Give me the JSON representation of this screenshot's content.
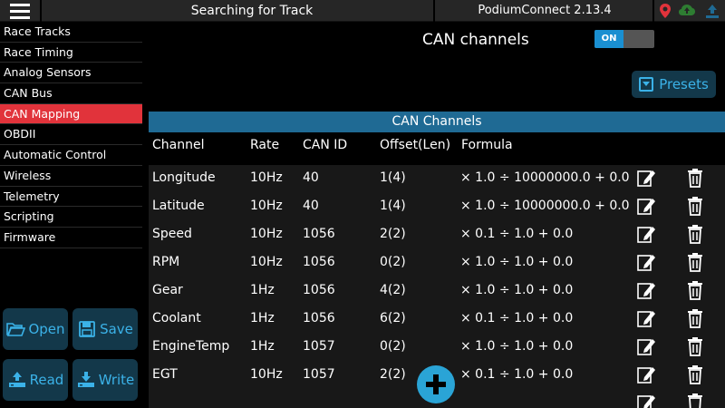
{
  "header": {
    "title": "Searching for Track",
    "app_version": "PodiumConnect 2.13.4",
    "icons": [
      "menu-icon",
      "location-pin-icon",
      "cloud-upload-icon",
      "upload-icon"
    ],
    "colors": {
      "pin": "#e1333b",
      "cloud": "#2e7d32",
      "upload": "#1f6a94"
    }
  },
  "sidebar": {
    "items": [
      {
        "label": "Race Tracks"
      },
      {
        "label": "Race Timing"
      },
      {
        "label": "Analog Sensors"
      },
      {
        "label": "CAN Bus"
      },
      {
        "label": "CAN Mapping",
        "active": true
      },
      {
        "label": "OBDII"
      },
      {
        "label": "Automatic Control"
      },
      {
        "label": "Wireless"
      },
      {
        "label": "Telemetry"
      },
      {
        "label": "Scripting"
      },
      {
        "label": "Firmware"
      }
    ],
    "buttons": {
      "open": "Open",
      "save": "Save",
      "read": "Read",
      "write": "Write"
    }
  },
  "main": {
    "can_title": "CAN channels",
    "toggle_label": "ON",
    "presets_label": "Presets",
    "table_title": "CAN Channels",
    "columns": {
      "channel": "Channel",
      "rate": "Rate",
      "can_id": "CAN ID",
      "offset": "Offset(Len)",
      "formula": "Formula"
    },
    "rows": [
      {
        "channel": "Longitude",
        "rate": "10Hz",
        "can_id": "40",
        "offset": "1(4)",
        "formula": "× 1.0 ÷ 10000000.0 + 0.0"
      },
      {
        "channel": "Latitude",
        "rate": "10Hz",
        "can_id": "40",
        "offset": "1(4)",
        "formula": "× 1.0 ÷ 10000000.0 + 0.0"
      },
      {
        "channel": "Speed",
        "rate": "10Hz",
        "can_id": "1056",
        "offset": "2(2)",
        "formula": "× 0.1 ÷ 1.0 + 0.0"
      },
      {
        "channel": "RPM",
        "rate": "10Hz",
        "can_id": "1056",
        "offset": "0(2)",
        "formula": "× 1.0 ÷ 1.0 + 0.0"
      },
      {
        "channel": "Gear",
        "rate": "1Hz",
        "can_id": "1056",
        "offset": "4(2)",
        "formula": "× 1.0 ÷ 1.0 + 0.0"
      },
      {
        "channel": "Coolant",
        "rate": "1Hz",
        "can_id": "1056",
        "offset": "6(2)",
        "formula": "× 0.1 ÷ 1.0 + 0.0"
      },
      {
        "channel": "EngineTemp",
        "rate": "1Hz",
        "can_id": "1057",
        "offset": "0(2)",
        "formula": "× 1.0 ÷ 1.0 + 0.0"
      },
      {
        "channel": "EGT",
        "rate": "10Hz",
        "can_id": "1057",
        "offset": "2(2)",
        "formula": "× 0.1 ÷ 1.0 + 0.0"
      }
    ]
  }
}
